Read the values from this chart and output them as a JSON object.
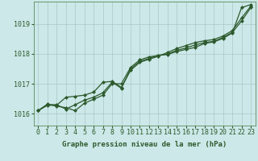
{
  "xlabel": "Graphe pression niveau de la mer (hPa)",
  "background_color": "#cce8e8",
  "plot_bg_color": "#cce8e8",
  "grid_color": "#aac8c8",
  "line_color": "#2d5a2d",
  "xlim": [
    -0.5,
    23.5
  ],
  "ylim": [
    1015.6,
    1019.75
  ],
  "yticks": [
    1016,
    1017,
    1018,
    1019
  ],
  "xticks": [
    0,
    1,
    2,
    3,
    4,
    5,
    6,
    7,
    8,
    9,
    10,
    11,
    12,
    13,
    14,
    15,
    16,
    17,
    18,
    19,
    20,
    21,
    22,
    23
  ],
  "series1": [
    1016.1,
    1016.3,
    1016.3,
    1016.15,
    1016.3,
    1016.45,
    1016.55,
    1016.7,
    1017.05,
    1016.85,
    1017.5,
    1017.75,
    1017.85,
    1017.95,
    1018.0,
    1018.12,
    1018.2,
    1018.3,
    1018.38,
    1018.42,
    1018.55,
    1018.72,
    1019.1,
    1019.55
  ],
  "series2": [
    1016.1,
    1016.28,
    1016.28,
    1016.55,
    1016.58,
    1016.62,
    1016.72,
    1017.05,
    1017.08,
    1016.88,
    1017.45,
    1017.72,
    1017.82,
    1017.92,
    1018.05,
    1018.18,
    1018.28,
    1018.38,
    1018.44,
    1018.48,
    1018.6,
    1018.78,
    1019.2,
    1019.6
  ],
  "series3": [
    1016.1,
    1016.32,
    1016.25,
    1016.2,
    1016.1,
    1016.35,
    1016.48,
    1016.62,
    1017.0,
    1017.0,
    1017.55,
    1017.8,
    1017.9,
    1017.95,
    1017.98,
    1018.08,
    1018.15,
    1018.22,
    1018.35,
    1018.4,
    1018.52,
    1018.7,
    1019.55,
    1019.65
  ],
  "marker": "D",
  "marker_size": 2.0,
  "line_width": 0.9,
  "xlabel_fontsize": 6.5,
  "tick_fontsize": 6.0,
  "tick_color": "#2d5a2d",
  "spine_color": "#5a8a5a"
}
